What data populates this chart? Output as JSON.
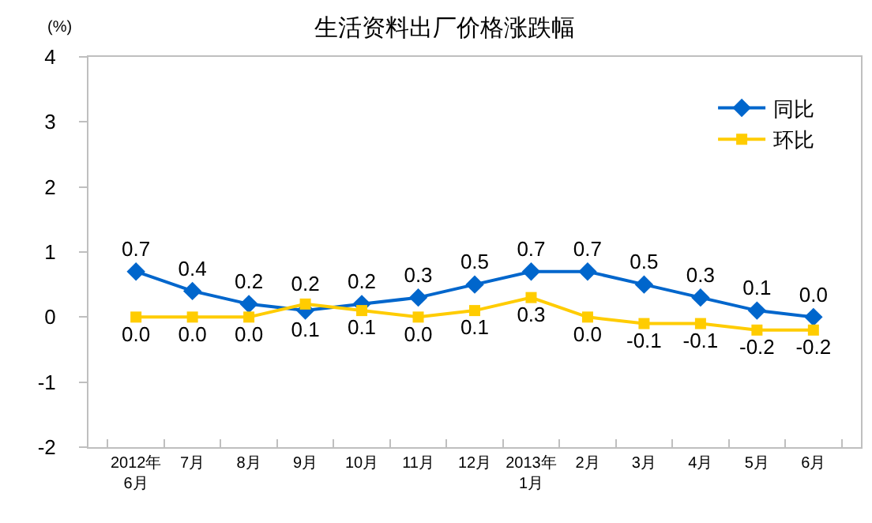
{
  "chart_data": {
    "type": "line",
    "title": "生活资料出厂价格涨跌幅",
    "ylabel": "(%)",
    "categories": [
      "2012年\n6月",
      "7月",
      "8月",
      "9月",
      "10月",
      "11月",
      "12月",
      "2013年\n1月",
      "2月",
      "3月",
      "4月",
      "5月",
      "6月"
    ],
    "ylim": [
      -2,
      4
    ],
    "yticks": [
      -2,
      -1,
      0,
      1,
      2,
      3,
      4
    ],
    "legend": "top right",
    "series": [
      {
        "name": "同比",
        "color": "#0066cc",
        "marker": "diamond",
        "values": [
          0.7,
          0.4,
          0.2,
          0.1,
          0.2,
          0.3,
          0.5,
          0.7,
          0.7,
          0.5,
          0.3,
          0.1,
          0.0
        ],
        "value_labels": [
          "0.7",
          "0.4",
          "0.2",
          "0.1",
          "0.2",
          "0.3",
          "0.5",
          "0.7",
          "0.7",
          "0.5",
          "0.3",
          "0.1",
          "0.0"
        ]
      },
      {
        "name": "环比",
        "color": "#ffcc00",
        "marker": "square",
        "values": [
          0.0,
          0.0,
          0.0,
          0.2,
          0.1,
          0.0,
          0.1,
          0.3,
          0.0,
          -0.1,
          -0.1,
          -0.2,
          -0.2
        ],
        "value_labels": [
          "0.0",
          "0.0",
          "0.0",
          "0.2",
          "0.1",
          "0.0",
          "0.1",
          "0.3",
          "0.0",
          "-0.1",
          "-0.1",
          "-0.2",
          "-0.2"
        ]
      }
    ]
  }
}
